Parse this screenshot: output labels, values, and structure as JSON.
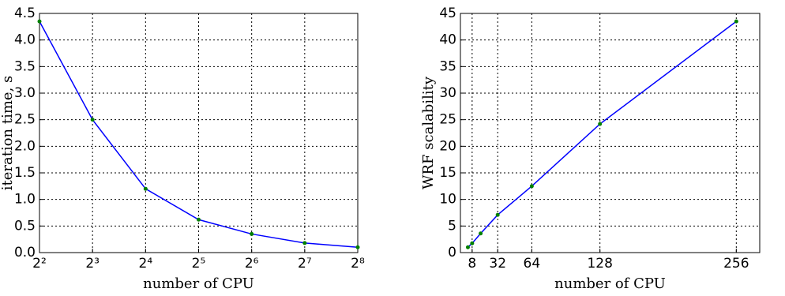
{
  "chart_data": [
    {
      "type": "line",
      "xscale": "log",
      "xbase": 2,
      "xlabel": "number of CPU",
      "ylabel": "iteration time, s",
      "x": [
        4,
        8,
        16,
        32,
        64,
        128,
        256
      ],
      "series": [
        {
          "color": "#0000ff",
          "marker_color": "#008000",
          "values": [
            4.35,
            2.5,
            1.2,
            0.62,
            0.35,
            0.18,
            0.1
          ]
        }
      ],
      "xlim": [
        4,
        256
      ],
      "xticks": [
        {
          "value": 4,
          "label": "2²"
        },
        {
          "value": 8,
          "label": "2³"
        },
        {
          "value": 16,
          "label": "2⁴"
        },
        {
          "value": 32,
          "label": "2⁵"
        },
        {
          "value": 64,
          "label": "2⁶"
        },
        {
          "value": 128,
          "label": "2⁷"
        },
        {
          "value": 256,
          "label": "2⁸"
        }
      ],
      "ylim": [
        0,
        4.5
      ],
      "yticks": [
        {
          "value": 0,
          "label": "0.0"
        },
        0.5,
        {
          "value": 1,
          "label": "1.0"
        },
        1.5,
        {
          "value": 2,
          "label": "2.0"
        },
        2.5,
        {
          "value": 3,
          "label": "3.0"
        },
        3.5,
        {
          "value": 4,
          "label": "4.0"
        },
        4.5
      ],
      "grid": true
    },
    {
      "type": "line",
      "xscale": "linear",
      "xlabel": "number of CPU",
      "ylabel": "WRF scalability",
      "x": [
        4,
        8,
        16,
        32,
        64,
        128,
        256
      ],
      "series": [
        {
          "color": "#0000ff",
          "marker_color": "#008000",
          "values": [
            1,
            1.75,
            3.6,
            7.1,
            12.5,
            24.2,
            43.5
          ]
        }
      ],
      "xlim": [
        -3,
        278
      ],
      "xticks": [
        8,
        32,
        64,
        128,
        256
      ],
      "ylim": [
        0,
        45
      ],
      "yticks": [
        0,
        5,
        10,
        15,
        20,
        25,
        30,
        35,
        40,
        45
      ],
      "grid": true
    }
  ]
}
